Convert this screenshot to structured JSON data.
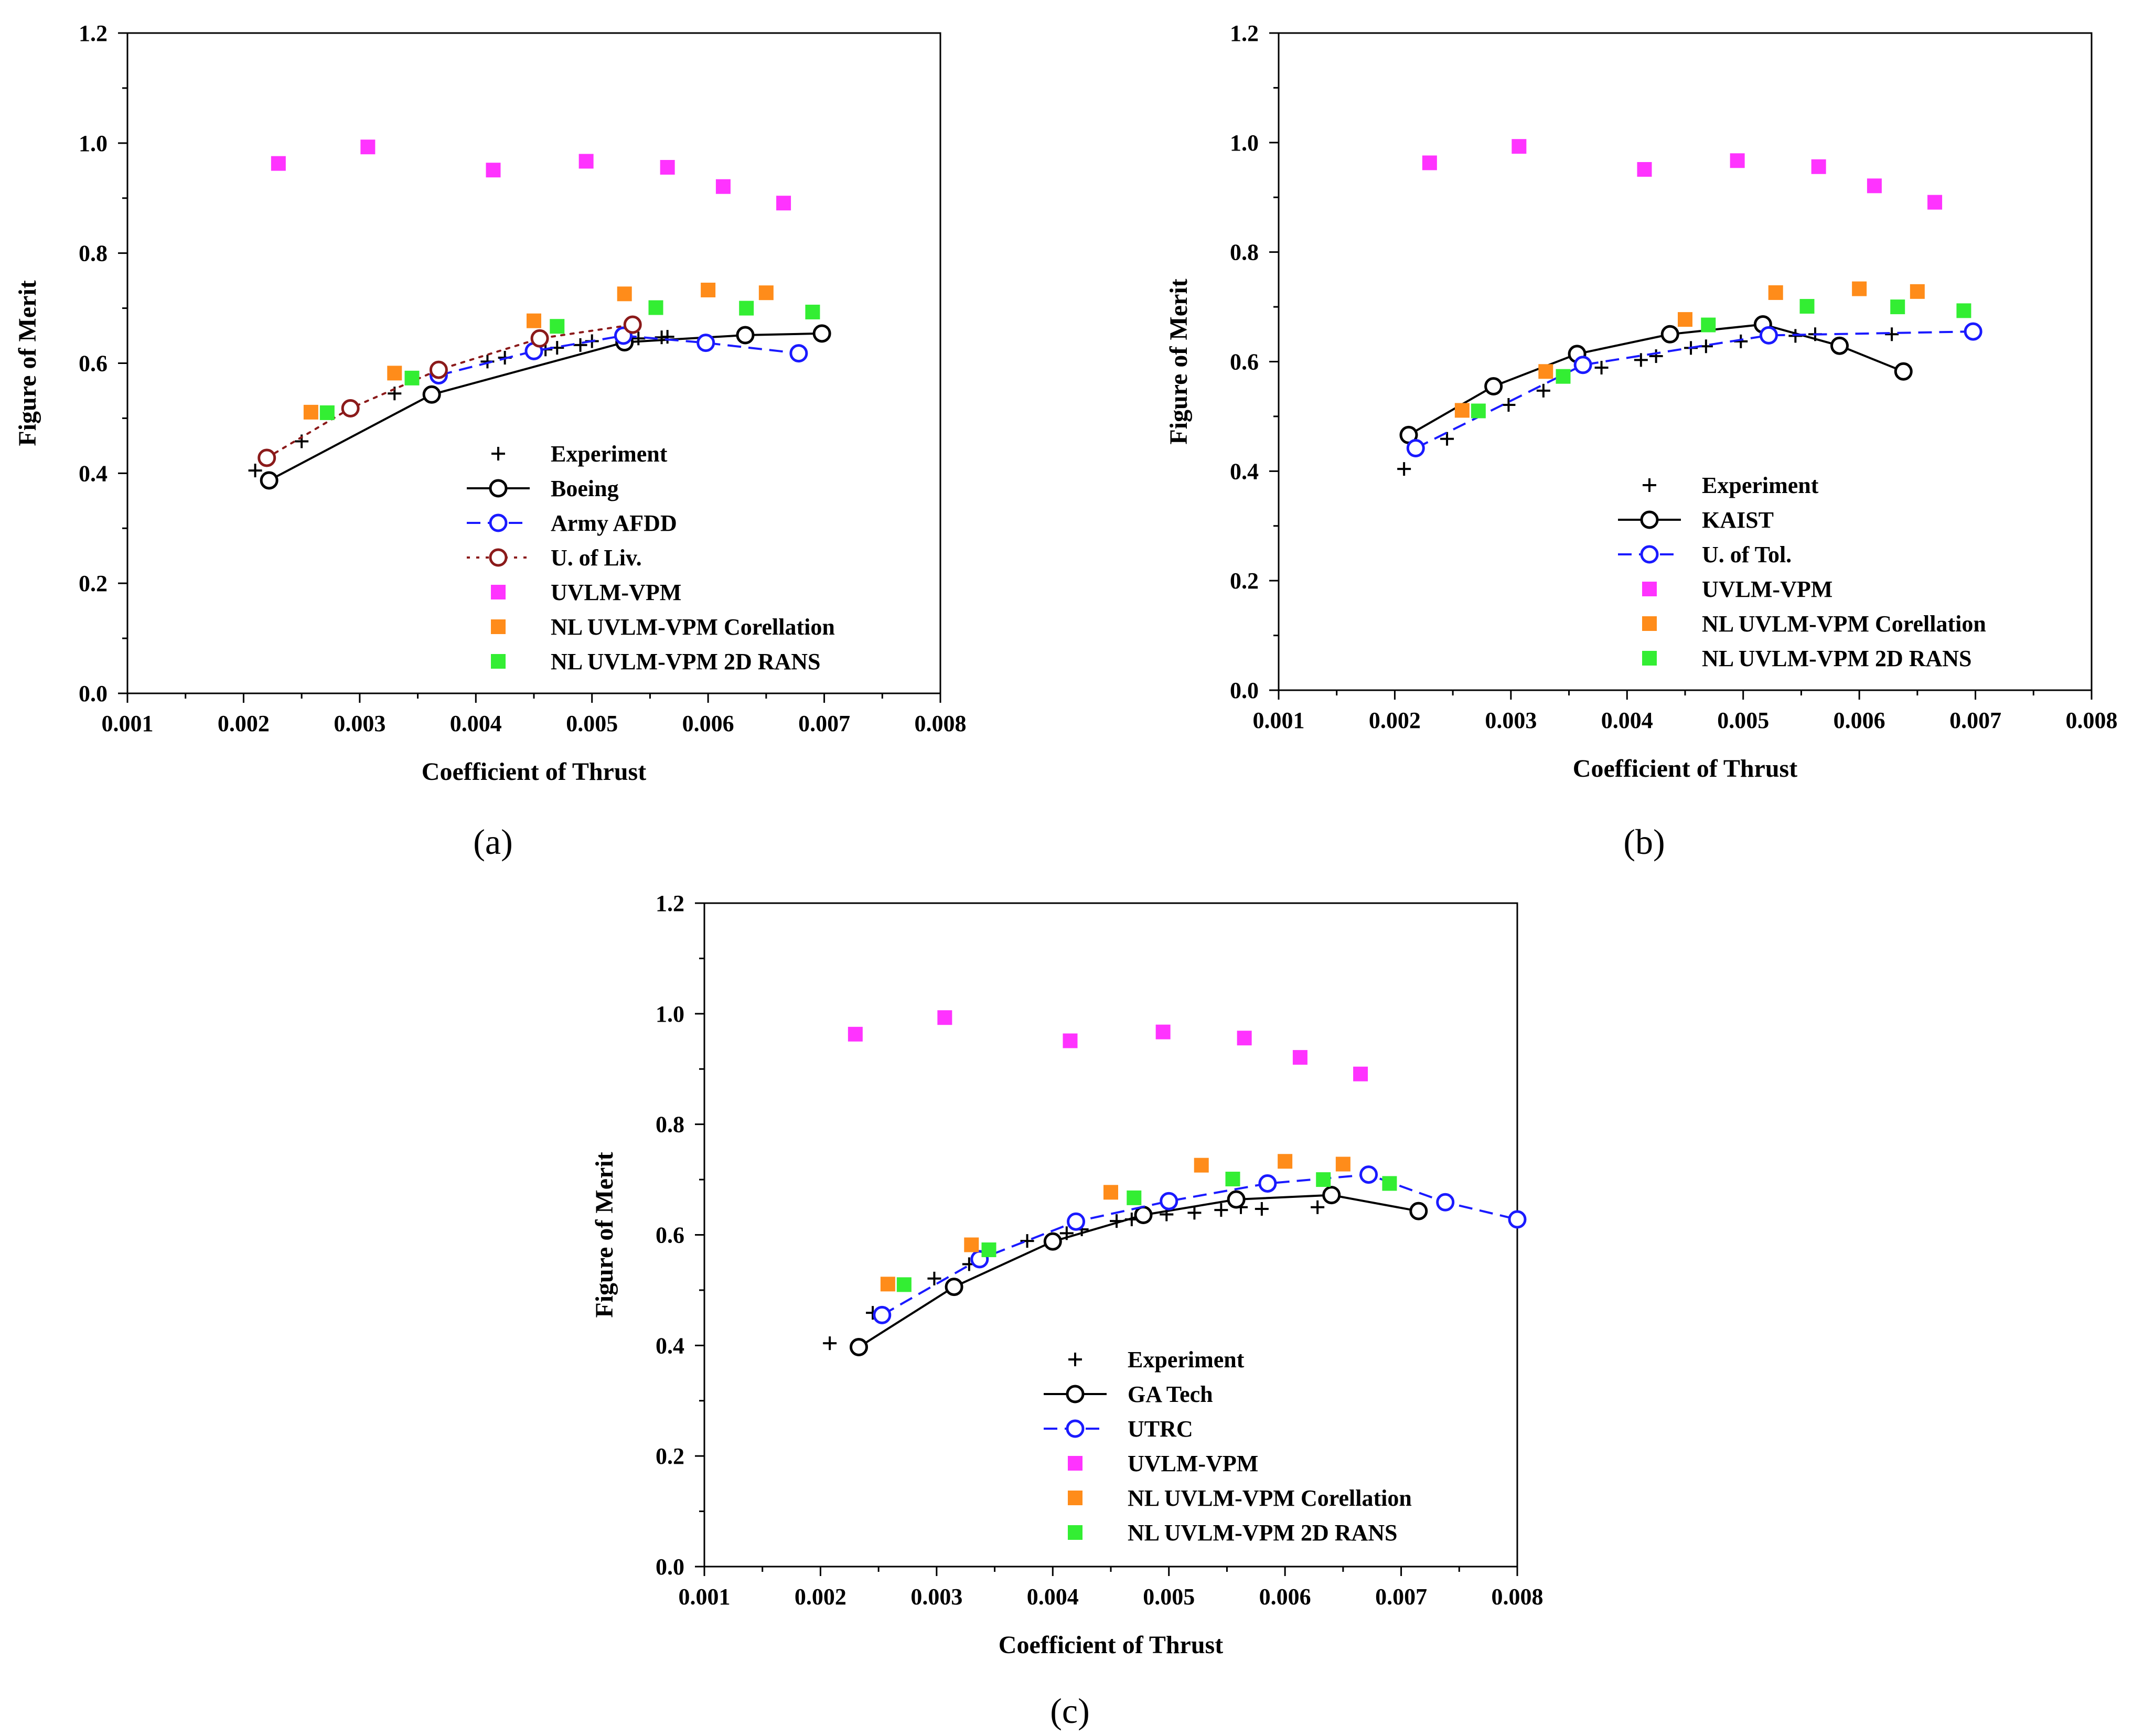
{
  "chart_data": [
    {
      "panel": "(a)",
      "type": "scatter",
      "xlabel": "Coefficient of Thrust",
      "ylabel": "Figure of Merit",
      "xlim": [
        0.001,
        0.008
      ],
      "ylim": [
        0.0,
        1.2
      ],
      "x_ticks": [
        "0.001",
        "0.002",
        "0.003",
        "0.004",
        "0.005",
        "0.006",
        "0.007",
        "0.008"
      ],
      "y_ticks": [
        "0.0",
        "0.2",
        "0.4",
        "0.6",
        "0.8",
        "1.0",
        "1.2"
      ],
      "legend_position": "bottom-right",
      "series": [
        {
          "name": "Experiment",
          "style": "plus",
          "color": "#000000",
          "x": [
            0.0021,
            0.0025,
            0.0033,
            0.0041,
            0.00425,
            0.0046,
            0.0047,
            0.0049,
            0.005,
            0.0054,
            0.0056,
            0.00565
          ],
          "y": [
            0.405,
            0.458,
            0.545,
            0.603,
            0.61,
            0.625,
            0.628,
            0.633,
            0.64,
            0.645,
            0.647,
            0.648
          ]
        },
        {
          "name": "Boeing",
          "style": "solid-circle",
          "color": "#000000",
          "x": [
            0.00222,
            0.00362,
            0.00528,
            0.00632,
            0.00698
          ],
          "y": [
            0.387,
            0.543,
            0.638,
            0.651,
            0.654
          ]
        },
        {
          "name": "Army AFDD",
          "style": "dashed-circle",
          "color": "#1a1aff",
          "x": [
            0.00368,
            0.0045,
            0.00527,
            0.00598,
            0.00678
          ],
          "y": [
            0.578,
            0.622,
            0.65,
            0.637,
            0.618
          ]
        },
        {
          "name": "U. of Liv.",
          "style": "dotted-circle",
          "color": "#8b1a1a",
          "x": [
            0.0022,
            0.00292,
            0.00368,
            0.00455,
            0.00535
          ],
          "y": [
            0.428,
            0.518,
            0.588,
            0.645,
            0.67
          ]
        },
        {
          "name": "UVLM-VPM",
          "style": "square",
          "color": "#ff33ff",
          "x": [
            0.0023,
            0.00307,
            0.00415,
            0.00495,
            0.00565,
            0.00613,
            0.00665
          ],
          "y": [
            0.963,
            0.993,
            0.951,
            0.967,
            0.956,
            0.921,
            0.891
          ]
        },
        {
          "name": "NL UVLM-VPM Corellation",
          "style": "square",
          "color": "#ff8c1a",
          "x": [
            0.00258,
            0.0033,
            0.0045,
            0.00528,
            0.006,
            0.0065
          ],
          "y": [
            0.511,
            0.582,
            0.677,
            0.726,
            0.733,
            0.728
          ]
        },
        {
          "name": "NL UVLM-VPM 2D RANS",
          "style": "square",
          "color": "#33ee33",
          "x": [
            0.00272,
            0.00345,
            0.0047,
            0.00555,
            0.00633,
            0.0069
          ],
          "y": [
            0.51,
            0.573,
            0.667,
            0.701,
            0.7,
            0.693
          ]
        }
      ]
    },
    {
      "panel": "(b)",
      "type": "scatter",
      "xlabel": "Coefficient of Thrust",
      "ylabel": "Figure of Merit",
      "xlim": [
        0.001,
        0.008
      ],
      "ylim": [
        0.0,
        1.2
      ],
      "x_ticks": [
        "0.001",
        "0.002",
        "0.003",
        "0.004",
        "0.005",
        "0.006",
        "0.007",
        "0.008"
      ],
      "y_ticks": [
        "0.0",
        "0.2",
        "0.4",
        "0.6",
        "0.8",
        "1.0",
        "1.2"
      ],
      "legend_position": "bottom-right",
      "series": [
        {
          "name": "Experiment",
          "style": "plus",
          "color": "#000000",
          "x": [
            0.00208,
            0.00245,
            0.00298,
            0.00328,
            0.00378,
            0.00412,
            0.00425,
            0.00455,
            0.00468,
            0.00498,
            0.00545,
            0.00562,
            0.00628
          ],
          "y": [
            0.404,
            0.459,
            0.521,
            0.547,
            0.589,
            0.603,
            0.61,
            0.625,
            0.628,
            0.637,
            0.647,
            0.65,
            0.65
          ]
        },
        {
          "name": "KAIST",
          "style": "solid-circle",
          "color": "#000000",
          "x": [
            0.00212,
            0.00285,
            0.00357,
            0.00437,
            0.00517,
            0.00583,
            0.00638
          ],
          "y": [
            0.466,
            0.555,
            0.614,
            0.65,
            0.668,
            0.629,
            0.582
          ]
        },
        {
          "name": "U. of Tol.",
          "style": "dashed-circle",
          "color": "#1a1aff",
          "x": [
            0.00218,
            0.00362,
            0.00522,
            0.00698
          ],
          "y": [
            0.442,
            0.594,
            0.648,
            0.655
          ]
        },
        {
          "name": "UVLM-VPM",
          "style": "square",
          "color": "#ff33ff",
          "x": [
            0.0023,
            0.00307,
            0.00415,
            0.00495,
            0.00565,
            0.00613,
            0.00665
          ],
          "y": [
            0.963,
            0.993,
            0.951,
            0.967,
            0.956,
            0.921,
            0.891
          ]
        },
        {
          "name": "NL UVLM-VPM Corellation",
          "style": "square",
          "color": "#ff8c1a",
          "x": [
            0.00258,
            0.0033,
            0.0045,
            0.00528,
            0.006,
            0.0065
          ],
          "y": [
            0.511,
            0.582,
            0.677,
            0.726,
            0.733,
            0.728
          ]
        },
        {
          "name": "NL UVLM-VPM 2D RANS",
          "style": "square",
          "color": "#33ee33",
          "x": [
            0.00272,
            0.00345,
            0.0047,
            0.00555,
            0.00633,
            0.0069
          ],
          "y": [
            0.51,
            0.573,
            0.667,
            0.701,
            0.7,
            0.693
          ]
        }
      ]
    },
    {
      "panel": "(c)",
      "type": "scatter",
      "xlabel": "Coefficient of Thrust",
      "ylabel": "Figure of Merit",
      "xlim": [
        0.001,
        0.008
      ],
      "ylim": [
        0.0,
        1.2
      ],
      "x_ticks": [
        "0.001",
        "0.002",
        "0.003",
        "0.004",
        "0.005",
        "0.006",
        "0.007",
        "0.008"
      ],
      "y_ticks": [
        "0.0",
        "0.2",
        "0.4",
        "0.6",
        "0.8",
        "1.0",
        "1.2"
      ],
      "legend_position": "bottom-right",
      "series": [
        {
          "name": "Experiment",
          "style": "plus",
          "color": "#000000",
          "x": [
            0.00208,
            0.00245,
            0.00298,
            0.00328,
            0.00378,
            0.00412,
            0.00425,
            0.00455,
            0.00468,
            0.00498,
            0.00522,
            0.00545,
            0.00562,
            0.0058,
            0.00628
          ],
          "y": [
            0.404,
            0.459,
            0.521,
            0.547,
            0.589,
            0.603,
            0.61,
            0.625,
            0.628,
            0.637,
            0.64,
            0.645,
            0.65,
            0.647,
            0.65
          ]
        },
        {
          "name": "GA Tech",
          "style": "solid-circle",
          "color": "#000000",
          "x": [
            0.00233,
            0.00315,
            0.004,
            0.00478,
            0.00558,
            0.0064,
            0.00715
          ],
          "y": [
            0.397,
            0.506,
            0.588,
            0.636,
            0.664,
            0.672,
            0.643
          ]
        },
        {
          "name": "UTRC",
          "style": "dashed-circle",
          "color": "#1a1aff",
          "x": [
            0.00253,
            0.00337,
            0.0042,
            0.005,
            0.00585,
            0.00672,
            0.00738,
            0.008
          ],
          "y": [
            0.455,
            0.556,
            0.624,
            0.661,
            0.693,
            0.709,
            0.659,
            0.628
          ]
        },
        {
          "name": "UVLM-VPM",
          "style": "square",
          "color": "#ff33ff",
          "x": [
            0.0023,
            0.00307,
            0.00415,
            0.00495,
            0.00565,
            0.00613,
            0.00665
          ],
          "y": [
            0.963,
            0.993,
            0.951,
            0.967,
            0.956,
            0.921,
            0.891
          ]
        },
        {
          "name": "NL UVLM-VPM Corellation",
          "style": "square",
          "color": "#ff8c1a",
          "x": [
            0.00258,
            0.0033,
            0.0045,
            0.00528,
            0.006,
            0.0065
          ],
          "y": [
            0.511,
            0.582,
            0.677,
            0.726,
            0.733,
            0.728
          ]
        },
        {
          "name": "NL UVLM-VPM 2D RANS",
          "style": "square",
          "color": "#33ee33",
          "x": [
            0.00272,
            0.00345,
            0.0047,
            0.00555,
            0.00633,
            0.0069
          ],
          "y": [
            0.51,
            0.573,
            0.667,
            0.701,
            0.7,
            0.693
          ]
        }
      ]
    }
  ]
}
